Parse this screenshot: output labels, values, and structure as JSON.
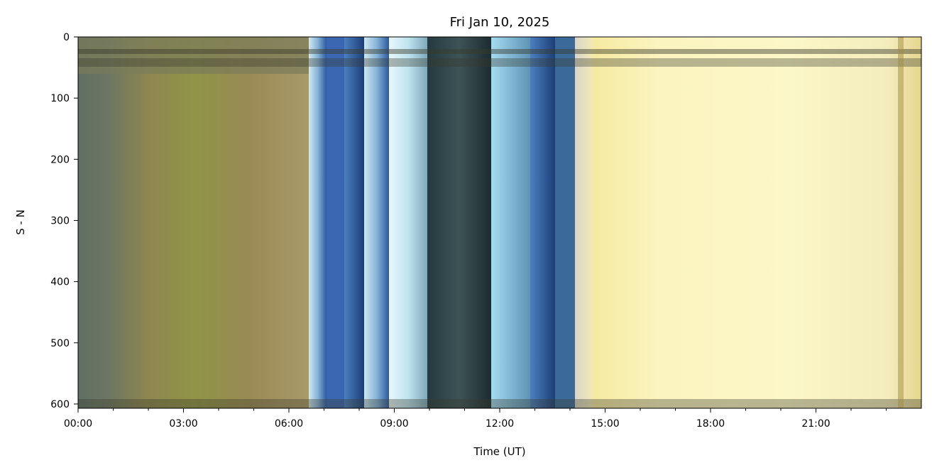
{
  "chart_data": {
    "type": "image",
    "title": "Fri Jan 10, 2025",
    "xlabel": "Time (UT)",
    "ylabel": "S - N",
    "xlim": [
      0,
      24
    ],
    "ylim": [
      0,
      607
    ],
    "y_inverted": true,
    "xticks": [
      {
        "value": 0,
        "label": "00:00"
      },
      {
        "value": 3,
        "label": "03:00"
      },
      {
        "value": 6,
        "label": "06:00"
      },
      {
        "value": 9,
        "label": "09:00"
      },
      {
        "value": 12,
        "label": "12:00"
      },
      {
        "value": 15,
        "label": "15:00"
      },
      {
        "value": 18,
        "label": "18:00"
      },
      {
        "value": 21,
        "label": "21:00"
      }
    ],
    "xminorticks": [
      1,
      2,
      4,
      5,
      7,
      8,
      10,
      11,
      13,
      14,
      16,
      17,
      19,
      20,
      22,
      23
    ],
    "yticks": [
      0,
      100,
      200,
      300,
      400,
      500,
      600
    ]
  }
}
